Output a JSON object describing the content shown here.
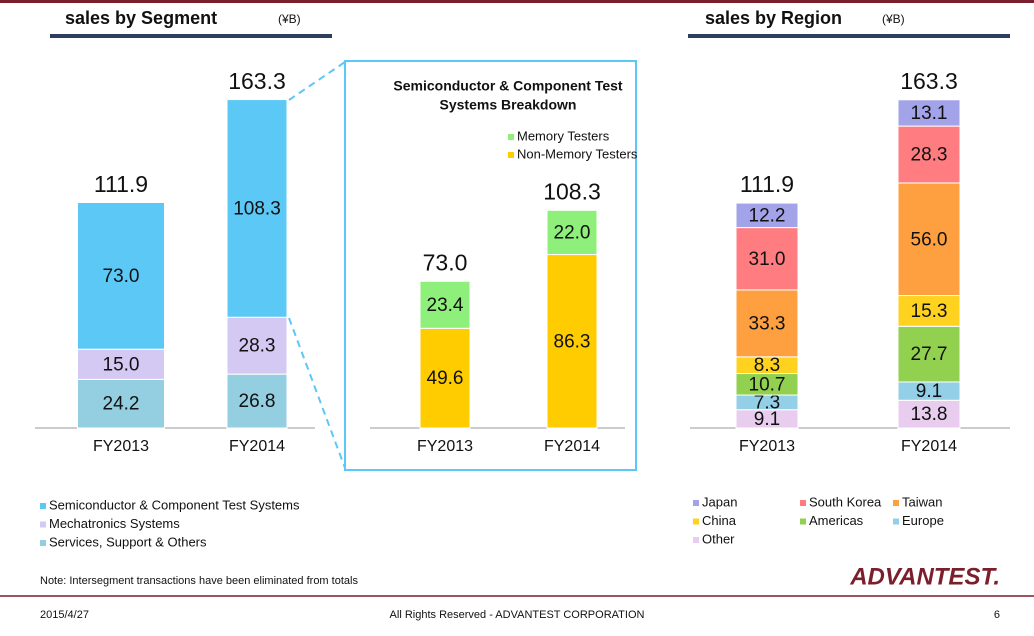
{
  "page": {
    "headers": [
      {
        "title": "sales by Segment",
        "unit": "(¥B)"
      },
      {
        "title": "sales by Region",
        "unit": "(¥B)"
      }
    ],
    "note": "Note: Intersegment transactions have been eliminated from totals",
    "logo": "ADVANTEST.",
    "footer": {
      "date": "2015/4/27",
      "copyright": "All Rights Reserved - ADVANTEST CORPORATION",
      "page_number": "6"
    }
  },
  "chart_data": [
    {
      "type": "bar",
      "stacked": true,
      "categories": [
        "FY2013",
        "FY2014"
      ],
      "totals": [
        111.9,
        163.3
      ],
      "series": [
        {
          "name": "Semiconductor & Component Test Systems",
          "color": "#5bc8f5",
          "values": [
            73.0,
            108.3
          ],
          "value_labels": [
            "73.0",
            "108.3"
          ]
        },
        {
          "name": "Mechatronics Systems",
          "color": "#d4c9f2",
          "values": [
            15.0,
            28.3
          ],
          "value_labels": [
            "15.0",
            "28.3"
          ]
        },
        {
          "name": "Services, Support & Others",
          "color": "#93cfe0",
          "values": [
            24.2,
            26.8
          ]
        }
      ]
    },
    {
      "type": "bar",
      "stacked": true,
      "title": [
        "Semiconductor & Component Test",
        "Systems Breakdown"
      ],
      "categories": [
        "FY2013",
        "FY2014"
      ],
      "totals": [
        73.0,
        108.3
      ],
      "total_labels": [
        "73.0",
        "108.3"
      ],
      "series": [
        {
          "name": "Memory Testers",
          "color": "#8ef07a",
          "values": [
            23.4,
            22.0
          ],
          "value_labels": [
            "23.4",
            "22.0"
          ]
        },
        {
          "name": "Non-Memory Testers",
          "color": "#ffcc00",
          "values": [
            49.6,
            86.3
          ]
        }
      ]
    },
    {
      "type": "bar",
      "stacked": true,
      "categories": [
        "FY2013",
        "FY2014"
      ],
      "totals": [
        111.9,
        163.3
      ],
      "series": [
        {
          "name": "Japan",
          "color": "#a3a3ea",
          "values": [
            12.2,
            13.1
          ]
        },
        {
          "name": "South Korea",
          "color": "#ff7c80",
          "values": [
            31.0,
            28.3
          ],
          "value_labels": [
            "31.0",
            "28.3"
          ]
        },
        {
          "name": "Taiwan",
          "color": "#ffa040",
          "values": [
            33.3,
            56.0
          ],
          "value_labels": [
            "33.3",
            "56.0"
          ]
        },
        {
          "name": "China",
          "color": "#ffd21f",
          "values": [
            8.3,
            15.3
          ]
        },
        {
          "name": "Americas",
          "color": "#92d050",
          "values": [
            10.7,
            27.7
          ]
        },
        {
          "name": "Europe",
          "color": "#93cfe6",
          "values": [
            7.3,
            9.1
          ]
        },
        {
          "name": "Other",
          "color": "#e8cdee",
          "values": [
            9.1,
            13.8
          ]
        }
      ]
    }
  ]
}
